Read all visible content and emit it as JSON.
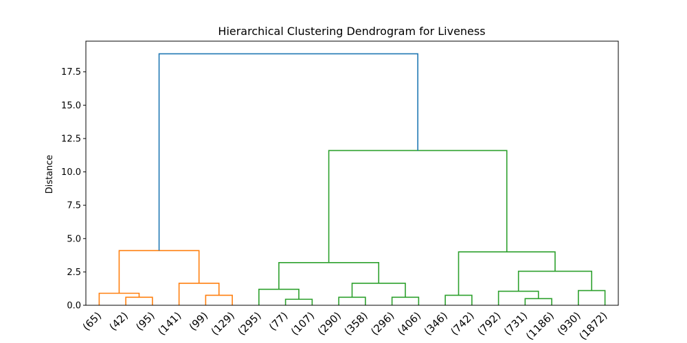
{
  "chart_data": {
    "type": "dendrogram",
    "title": "Hierarchical Clustering Dendrogram for Liveness",
    "xlabel": "",
    "ylabel": "Distance",
    "ylim": [
      0,
      19.8
    ],
    "yticks": [
      "0.0",
      "2.5",
      "5.0",
      "7.5",
      "10.0",
      "12.5",
      "15.0",
      "17.5"
    ],
    "leaves": [
      "(65)",
      "(42)",
      "(95)",
      "(141)",
      "(99)",
      "(129)",
      "(295)",
      "(77)",
      "(107)",
      "(290)",
      "(358)",
      "(296)",
      "(406)",
      "(346)",
      "(742)",
      "(792)",
      "(731)",
      "(1186)",
      "(930)",
      "(1872)"
    ],
    "colors": {
      "cluster_1": "#ff7f0e",
      "cluster_2": "#2ca02c",
      "root": "#1f77b4"
    },
    "links": [
      {
        "id": "c1",
        "left": 1,
        "right": 2,
        "height": 0.6,
        "color": "cluster_1"
      },
      {
        "id": "c2",
        "left": 0,
        "right": "c1",
        "height": 0.9,
        "color": "cluster_1"
      },
      {
        "id": "c3",
        "left": 4,
        "right": 5,
        "height": 0.75,
        "color": "cluster_1"
      },
      {
        "id": "c4",
        "left": 3,
        "right": "c3",
        "height": 1.65,
        "color": "cluster_1"
      },
      {
        "id": "c5",
        "left": "c2",
        "right": "c4",
        "height": 4.1,
        "color": "cluster_1"
      },
      {
        "id": "c6",
        "left": 7,
        "right": 8,
        "height": 0.45,
        "color": "cluster_2"
      },
      {
        "id": "c7",
        "left": 6,
        "right": "c6",
        "height": 1.2,
        "color": "cluster_2"
      },
      {
        "id": "c8",
        "left": 9,
        "right": 10,
        "height": 0.6,
        "color": "cluster_2"
      },
      {
        "id": "c9",
        "left": 11,
        "right": 12,
        "height": 0.6,
        "color": "cluster_2"
      },
      {
        "id": "c10",
        "left": "c8",
        "right": "c9",
        "height": 1.65,
        "color": "cluster_2"
      },
      {
        "id": "c11",
        "left": "c7",
        "right": "c10",
        "height": 3.2,
        "color": "cluster_2"
      },
      {
        "id": "c12",
        "left": 13,
        "right": 14,
        "height": 0.75,
        "color": "cluster_2"
      },
      {
        "id": "c13",
        "left": 16,
        "right": 17,
        "height": 0.5,
        "color": "cluster_2"
      },
      {
        "id": "c14",
        "left": 15,
        "right": "c13",
        "height": 1.05,
        "color": "cluster_2"
      },
      {
        "id": "c15",
        "left": 18,
        "right": 19,
        "height": 1.1,
        "color": "cluster_2"
      },
      {
        "id": "c16",
        "left": "c14",
        "right": "c15",
        "height": 2.55,
        "color": "cluster_2"
      },
      {
        "id": "c17",
        "left": "c12",
        "right": "c16",
        "height": 4.0,
        "color": "cluster_2"
      },
      {
        "id": "c18",
        "left": "c11",
        "right": "c17",
        "height": 11.6,
        "color": "cluster_2"
      },
      {
        "id": "c19",
        "left": "c5",
        "right": "c18",
        "height": 18.85,
        "color": "root"
      }
    ]
  }
}
